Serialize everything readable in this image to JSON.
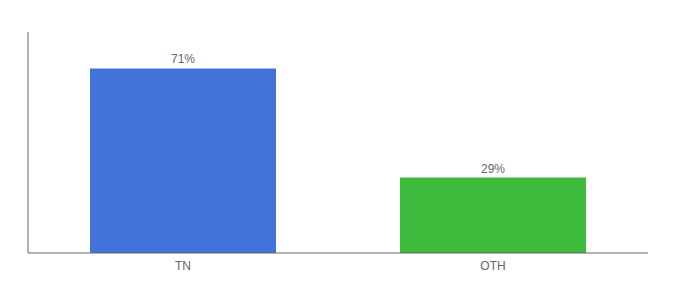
{
  "chart_data": {
    "type": "bar",
    "categories": [
      "TN",
      "OTH"
    ],
    "values": [
      71,
      29
    ],
    "value_labels": [
      "71%",
      "29%"
    ],
    "colors": [
      "#4472db",
      "#3dbb3d"
    ],
    "ylim": [
      0,
      85
    ],
    "data_labels": true,
    "tick_labels": "x",
    "grid": false
  }
}
